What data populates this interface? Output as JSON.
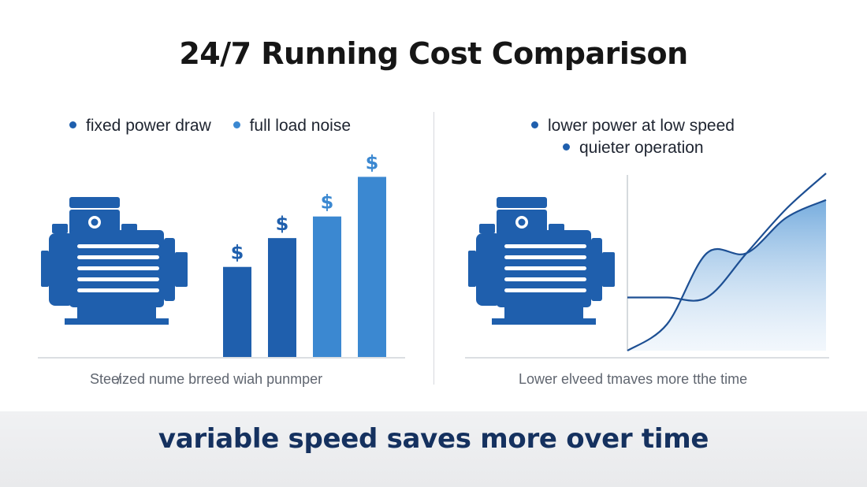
{
  "title": "24/7 Running Cost Comparison",
  "colors": {
    "motor": "#1f5fad",
    "bar_dark": "#1f5fad",
    "bar_light": "#3b88d1",
    "curve": "#1d4f93",
    "fill": "#6fa8dc"
  },
  "left": {
    "legend": [
      {
        "label": "fixed power draw",
        "color": "#1f5fad"
      },
      {
        "label": "full load noise",
        "color": "#3b88d1"
      }
    ],
    "bar_symbol": "$",
    "caption": "Stee̸ized nume  brreed wiah punmper",
    "chart_data": {
      "type": "bar",
      "categories": [
        "",
        "",
        "",
        ""
      ],
      "values": [
        1,
        1.32,
        1.56,
        2.0
      ],
      "ylim": [
        0,
        2.1
      ],
      "grid": false
    }
  },
  "right": {
    "legend": [
      {
        "label": "lower power at low speed",
        "color": "#1f5fad"
      },
      {
        "label": "quieter operation",
        "color": "#1f5fad"
      }
    ],
    "caption": "Lower elveed  tmaves more tthe time",
    "chart_data": {
      "type": "area",
      "x": [
        0,
        0.2,
        0.4,
        0.6,
        0.8,
        1.0
      ],
      "series": [
        {
          "values": [
            0.3,
            0.3,
            0.3,
            0.55,
            0.8,
            1.0
          ]
        },
        {
          "values": [
            0.0,
            0.15,
            0.55,
            0.55,
            0.75,
            0.85
          ]
        }
      ],
      "ylim": [
        0,
        1
      ],
      "grid": false
    }
  },
  "banner": "variable speed saves more over time"
}
